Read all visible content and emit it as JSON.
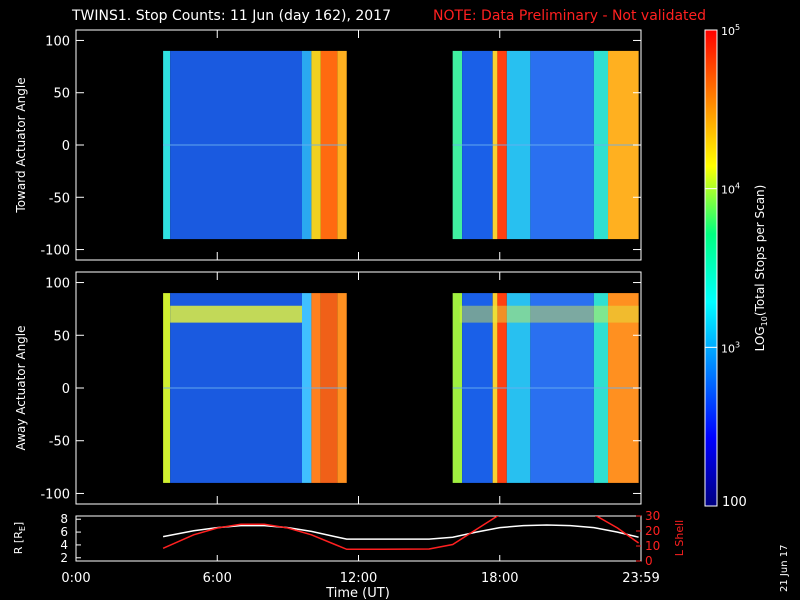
{
  "title": {
    "main": "TWINS1. Stop Counts: 11 Jun (day 162), 2017",
    "note": "NOTE: Data Preliminary - Not validated",
    "note_color": "#ff2020"
  },
  "date_stamp": "21 Jun 17",
  "chart_data": [
    {
      "type": "heatmap",
      "panel": "toward",
      "ylabel": "Toward Actuator Angle",
      "yticks": [
        "100",
        "50",
        "0",
        "-50",
        "-100"
      ],
      "ytick_values": [
        100,
        50,
        0,
        -50,
        -100
      ],
      "ylim": [
        -110,
        110
      ],
      "xlim_hours": [
        0,
        24
      ],
      "data_extent_deg": [
        -90,
        90
      ],
      "data_intervals_hours": [
        [
          3.7,
          11.5
        ],
        [
          16.0,
          23.9
        ]
      ],
      "color_bands": [
        {
          "from": 3.7,
          "to": 4.0,
          "color": "#30e0e0"
        },
        {
          "from": 4.0,
          "to": 9.6,
          "color": "#1a5ae0"
        },
        {
          "from": 9.6,
          "to": 10.0,
          "color": "#2aa8f0"
        },
        {
          "from": 10.0,
          "to": 10.4,
          "color": "#f0d020"
        },
        {
          "from": 10.4,
          "to": 11.1,
          "color": "#ff6a10"
        },
        {
          "from": 11.1,
          "to": 11.5,
          "color": "#ffb020"
        },
        {
          "from": 16.0,
          "to": 16.4,
          "color": "#40f0a0"
        },
        {
          "from": 16.4,
          "to": 17.7,
          "color": "#1a60e8"
        },
        {
          "from": 17.7,
          "to": 17.9,
          "color": "#f8d030"
        },
        {
          "from": 17.9,
          "to": 18.3,
          "color": "#ff4010"
        },
        {
          "from": 18.3,
          "to": 19.3,
          "color": "#28c0f0"
        },
        {
          "from": 19.3,
          "to": 22.0,
          "color": "#2a70f0"
        },
        {
          "from": 22.0,
          "to": 22.6,
          "color": "#30e0d0"
        },
        {
          "from": 22.6,
          "to": 23.9,
          "color": "#ffb020"
        }
      ]
    },
    {
      "type": "heatmap",
      "panel": "away",
      "ylabel": "Away Actuator Angle",
      "yticks": [
        "100",
        "50",
        "0",
        "-50",
        "-100"
      ],
      "ytick_values": [
        100,
        50,
        0,
        -50,
        -100
      ],
      "ylim": [
        -110,
        110
      ],
      "xlim_hours": [
        0,
        24
      ],
      "data_extent_deg": [
        -90,
        90
      ],
      "data_intervals_hours": [
        [
          3.7,
          11.5
        ],
        [
          16.0,
          23.9
        ]
      ],
      "color_bands": [
        {
          "from": 3.7,
          "to": 4.0,
          "color": "#d0f030"
        },
        {
          "from": 4.0,
          "to": 9.6,
          "color": "#1a5ae0"
        },
        {
          "from": 9.6,
          "to": 10.0,
          "color": "#40c0ff"
        },
        {
          "from": 10.0,
          "to": 10.4,
          "color": "#ff8020"
        },
        {
          "from": 10.4,
          "to": 11.1,
          "color": "#f06018"
        },
        {
          "from": 11.1,
          "to": 11.5,
          "color": "#ff9020"
        },
        {
          "from": 16.0,
          "to": 16.4,
          "color": "#a0f040"
        },
        {
          "from": 16.4,
          "to": 17.7,
          "color": "#1a60e8"
        },
        {
          "from": 17.7,
          "to": 17.9,
          "color": "#f8d030"
        },
        {
          "from": 17.9,
          "to": 18.3,
          "color": "#ff4010"
        },
        {
          "from": 18.3,
          "to": 19.3,
          "color": "#28c0f0"
        },
        {
          "from": 19.3,
          "to": 22.0,
          "color": "#2a70f0"
        },
        {
          "from": 22.0,
          "to": 22.6,
          "color": "#30e0d0"
        },
        {
          "from": 22.6,
          "to": 23.9,
          "color": "#ff9020"
        }
      ],
      "highlight_band_deg": [
        62,
        78
      ],
      "highlight_color": "#e0f040"
    },
    {
      "type": "line",
      "panel": "orbit",
      "ylabel_left": "R [R",
      "ylabel_left_sub": "E",
      "ylabel_left_close": "]",
      "ylabel_right": "L Shell",
      "yticks_left": [
        "8",
        "6",
        "4",
        "2"
      ],
      "ytick_values_left": [
        8,
        6,
        4,
        2
      ],
      "ylim_left": [
        1.5,
        8.5
      ],
      "yticks_right": [
        "30",
        "20",
        "10",
        "0"
      ],
      "ytick_values_right": [
        30,
        20,
        10,
        0
      ],
      "ylim_right": [
        0,
        30
      ],
      "xticks": [
        "0:00",
        "6:00",
        "12:00",
        "18:00",
        "23:59"
      ],
      "xtick_values": [
        0,
        6,
        12,
        18,
        24
      ],
      "xlabel": "Time (UT)",
      "series": [
        {
          "axis": "left",
          "color": "#ffffff",
          "x": [
            3.7,
            5,
            6,
            7,
            8,
            9,
            10,
            11,
            11.5,
            13,
            15,
            16,
            17,
            18,
            19,
            20,
            21,
            22,
            23,
            23.9
          ],
          "y": [
            5.3,
            6.2,
            6.7,
            7.0,
            7.0,
            6.7,
            6.1,
            5.3,
            4.9,
            4.9,
            4.9,
            5.2,
            6.0,
            6.7,
            7.0,
            7.1,
            7.0,
            6.7,
            6.0,
            5.2
          ]
        },
        {
          "axis": "right",
          "color": "#ff2020",
          "x": [
            3.7,
            5,
            6,
            7,
            8,
            9,
            10,
            11,
            11.5,
            13,
            15,
            16,
            17,
            18
          ],
          "y": [
            8.5,
            17.5,
            22.0,
            24.5,
            24.5,
            22.0,
            17.5,
            11.0,
            7.8,
            7.8,
            8.0,
            11.0,
            21.0,
            31.0
          ]
        },
        {
          "axis": "right",
          "color": "#ff2020",
          "x": [
            22.0,
            23.0,
            23.9
          ],
          "y": [
            31.0,
            22.0,
            12.0
          ]
        }
      ]
    },
    {
      "type": "colorbar",
      "panel": "colorbar",
      "label": "LOG",
      "label_sub": "10",
      "label_rest": "(Total Stops per Scan)",
      "scale": "log",
      "range": [
        100,
        100000
      ],
      "tick_base": "10",
      "tick_exponents": [
        "5",
        "4",
        "3"
      ],
      "tick_values": [
        100000,
        10000,
        1000
      ],
      "bottom_label": "100",
      "stops": [
        "#000080",
        "#0000ff",
        "#0080ff",
        "#00ffff",
        "#00ff80",
        "#ffff00",
        "#ff8000",
        "#ff0000"
      ]
    }
  ]
}
